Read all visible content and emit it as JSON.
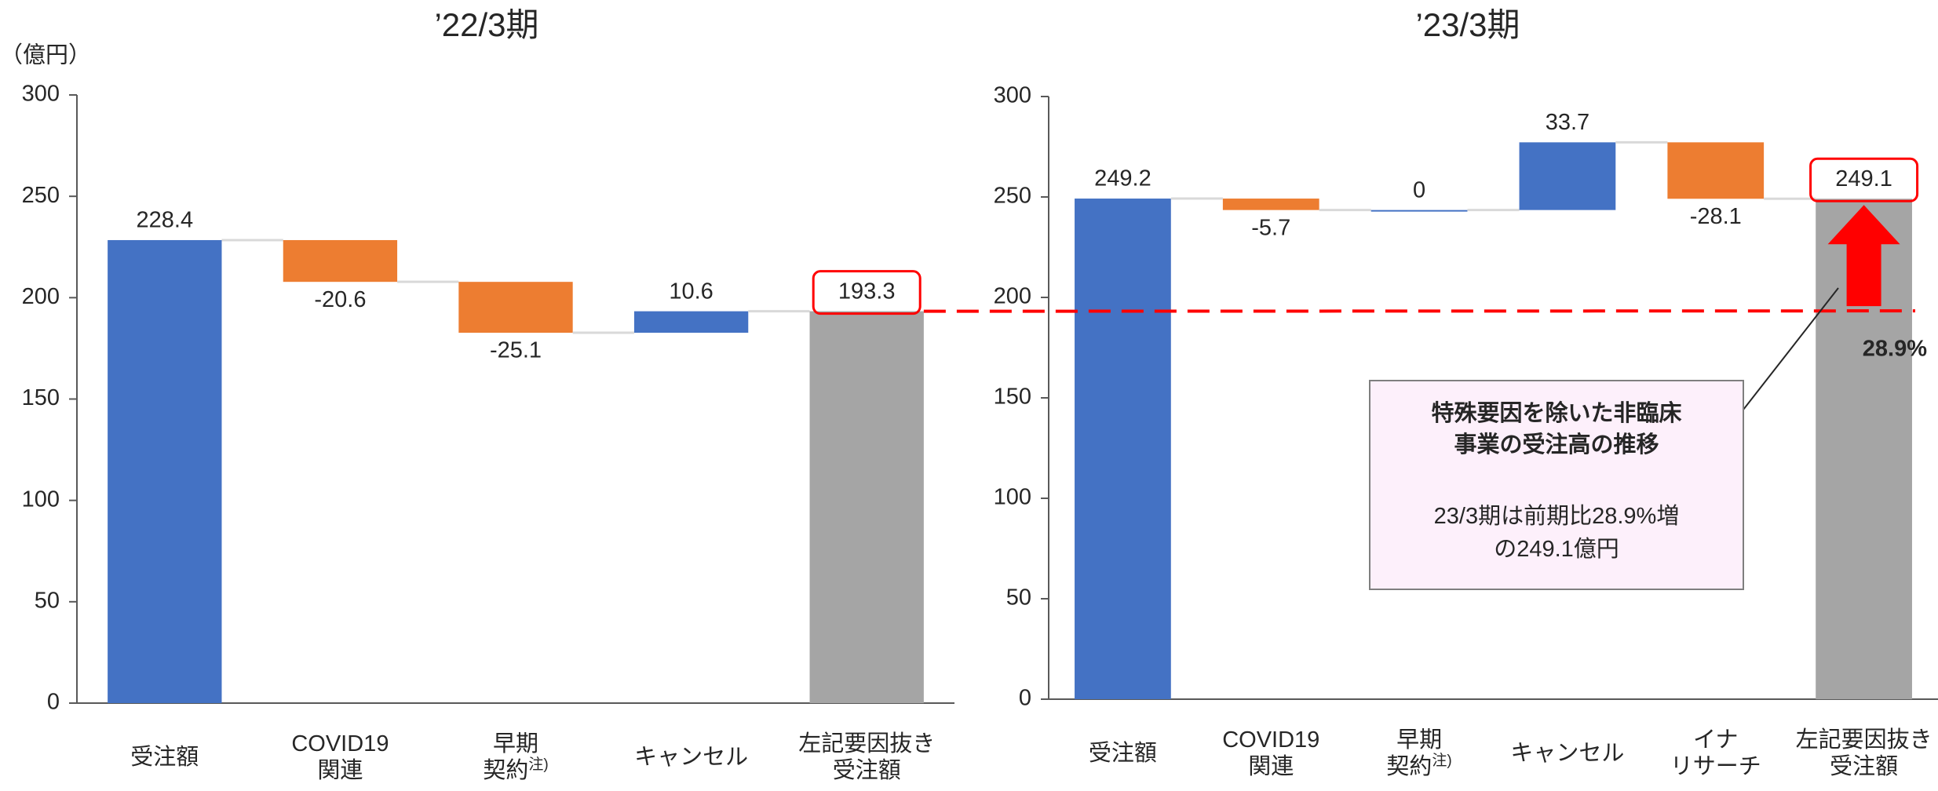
{
  "chart_data": [
    {
      "type": "waterfall",
      "title": "’22/3期",
      "y_unit_label": "（億円）",
      "categories": [
        "受注額",
        "COVID19\n関連",
        "早期\n契約注)",
        "キャンセル",
        "左記要因抜き\n受注額"
      ],
      "values": [
        228.4,
        -20.6,
        -25.1,
        10.6,
        193.3
      ],
      "measure": [
        "absolute",
        "relative",
        "relative",
        "relative",
        "total"
      ],
      "increase_color": "#4472c4",
      "decrease_color": "#ed7d31",
      "total_color": "#a5a5a5",
      "ylim": [
        0,
        300
      ],
      "yticks": [
        0,
        50,
        100,
        150,
        200,
        250,
        300
      ]
    },
    {
      "type": "waterfall",
      "title": "’23/3期",
      "categories": [
        "受注額",
        "COVID19\n関連",
        "早期\n契約注)",
        "キャンセル",
        "イナ\nリサーチ",
        "左記要因抜き\n受注額"
      ],
      "values": [
        249.2,
        -5.7,
        0,
        33.7,
        -28.1,
        249.1
      ],
      "measure": [
        "absolute",
        "relative",
        "relative",
        "relative",
        "relative",
        "total"
      ],
      "increase_color": "#4472c4",
      "decrease_color": "#ed7d31",
      "total_color": "#a5a5a5",
      "ylim": [
        0,
        300
      ],
      "yticks": [
        0,
        50,
        100,
        150,
        200,
        250,
        300
      ],
      "annotation": {
        "title": "特殊要因を除いた非臨床\n事業の受注高の推移",
        "text": "23/3期は前期比28.9%増\nの249.1億円"
      },
      "change_label": "28.9%"
    }
  ]
}
